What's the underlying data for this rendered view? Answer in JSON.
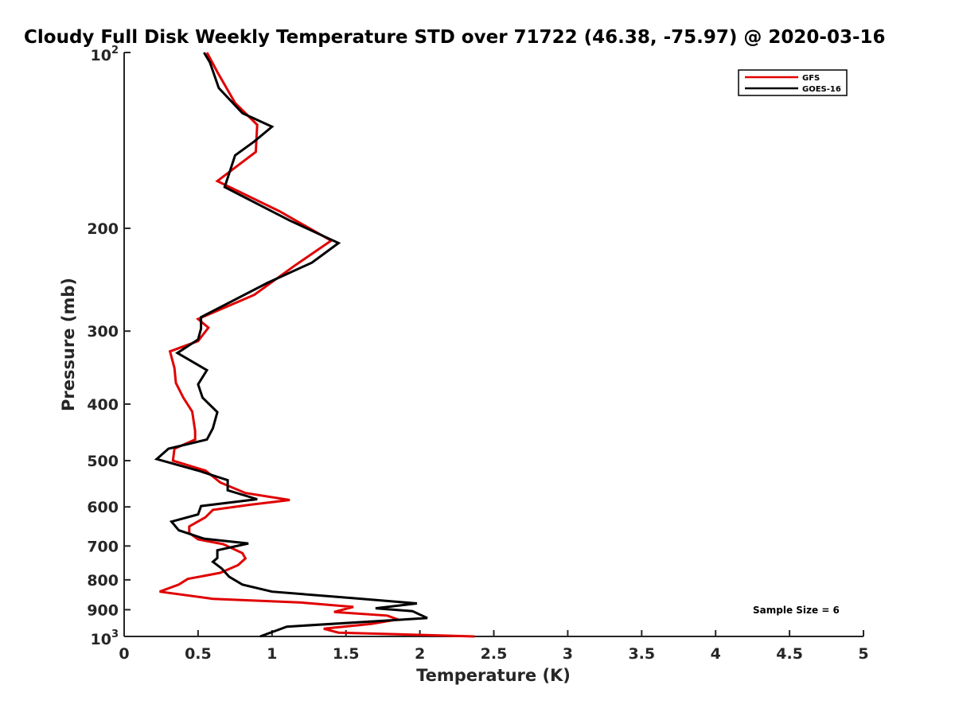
{
  "chart_data": {
    "type": "line",
    "title": "Cloudy Full Disk Weekly Temperature STD over 71722 (46.38, -75.97) @ 2020-03-16",
    "xlabel": "Temperature (K)",
    "ylabel": "Pressure (mb)",
    "xlim": [
      0,
      5
    ],
    "ylim": [
      100,
      1000
    ],
    "yscale": "log",
    "yreversed": true,
    "x_ticks": [
      0,
      0.5,
      1,
      1.5,
      2,
      2.5,
      3,
      3.5,
      4,
      4.5,
      5
    ],
    "x_tick_labels": [
      "0",
      "0.5",
      "1",
      "1.5",
      "2",
      "2.5",
      "3",
      "3.5",
      "4",
      "4.5",
      "5"
    ],
    "y_ticks": [
      200,
      300,
      400,
      500,
      600,
      700,
      800,
      900
    ],
    "y_tick_labels": [
      "200",
      "300",
      "400",
      "500",
      "600",
      "700",
      "800",
      "900"
    ],
    "y_tick_top": {
      "base": "10",
      "exp": "2"
    },
    "y_tick_bottom": {
      "base": "10",
      "exp": "3"
    },
    "legend": {
      "position": "top-right",
      "entries": [
        "GFS",
        "GOES-16"
      ]
    },
    "annotation": "Sample Size = 6",
    "series": [
      {
        "name": "GFS",
        "color": "#e00000",
        "points": [
          [
            0.56,
            100
          ],
          [
            0.63,
            108
          ],
          [
            0.75,
            122
          ],
          [
            0.9,
            133
          ],
          [
            0.89,
            148
          ],
          [
            0.63,
            166
          ],
          [
            1.05,
            187
          ],
          [
            1.4,
            210
          ],
          [
            1.15,
            232
          ],
          [
            0.88,
            260
          ],
          [
            0.5,
            286
          ],
          [
            0.57,
            296
          ],
          [
            0.5,
            312
          ],
          [
            0.31,
            325
          ],
          [
            0.34,
            347
          ],
          [
            0.35,
            368
          ],
          [
            0.4,
            390
          ],
          [
            0.46,
            412
          ],
          [
            0.48,
            445
          ],
          [
            0.48,
            460
          ],
          [
            0.34,
            477
          ],
          [
            0.33,
            500
          ],
          [
            0.55,
            520
          ],
          [
            0.65,
            545
          ],
          [
            0.82,
            568
          ],
          [
            1.12,
            584
          ],
          [
            0.85,
            595
          ],
          [
            0.6,
            607
          ],
          [
            0.55,
            625
          ],
          [
            0.44,
            648
          ],
          [
            0.44,
            665
          ],
          [
            0.5,
            682
          ],
          [
            0.67,
            695
          ],
          [
            0.8,
            720
          ],
          [
            0.82,
            735
          ],
          [
            0.77,
            755
          ],
          [
            0.65,
            778
          ],
          [
            0.43,
            797
          ],
          [
            0.37,
            815
          ],
          [
            0.24,
            838
          ],
          [
            0.6,
            862
          ],
          [
            1.2,
            875
          ],
          [
            1.55,
            890
          ],
          [
            1.42,
            908
          ],
          [
            1.78,
            921
          ],
          [
            1.85,
            935
          ],
          [
            1.67,
            952
          ],
          [
            1.35,
            970
          ],
          [
            1.45,
            985
          ],
          [
            2.37,
            1000
          ]
        ]
      },
      {
        "name": "GOES-16",
        "color": "#000000",
        "points": [
          [
            0.54,
            100
          ],
          [
            0.58,
            104
          ],
          [
            0.64,
            115
          ],
          [
            0.8,
            127
          ],
          [
            1.0,
            134
          ],
          [
            0.88,
            142
          ],
          [
            0.75,
            150
          ],
          [
            0.7,
            164
          ],
          [
            0.68,
            170
          ],
          [
            1.12,
            194
          ],
          [
            1.45,
            212
          ],
          [
            1.27,
            229
          ],
          [
            0.97,
            248
          ],
          [
            0.52,
            284
          ],
          [
            0.52,
            297
          ],
          [
            0.5,
            310
          ],
          [
            0.36,
            327
          ],
          [
            0.56,
            350
          ],
          [
            0.5,
            370
          ],
          [
            0.53,
            390
          ],
          [
            0.63,
            413
          ],
          [
            0.6,
            440
          ],
          [
            0.56,
            460
          ],
          [
            0.3,
            477
          ],
          [
            0.22,
            497
          ],
          [
            0.5,
            520
          ],
          [
            0.7,
            540
          ],
          [
            0.7,
            562
          ],
          [
            0.9,
            582
          ],
          [
            0.52,
            598
          ],
          [
            0.5,
            618
          ],
          [
            0.32,
            636
          ],
          [
            0.37,
            658
          ],
          [
            0.54,
            680
          ],
          [
            0.84,
            693
          ],
          [
            0.63,
            712
          ],
          [
            0.63,
            734
          ],
          [
            0.6,
            745
          ],
          [
            0.66,
            765
          ],
          [
            0.71,
            790
          ],
          [
            0.8,
            815
          ],
          [
            1.0,
            838
          ],
          [
            1.55,
            860
          ],
          [
            1.98,
            878
          ],
          [
            1.7,
            895
          ],
          [
            1.95,
            905
          ],
          [
            2.05,
            930
          ],
          [
            1.1,
            962
          ],
          [
            0.92,
            1000
          ]
        ]
      }
    ]
  }
}
